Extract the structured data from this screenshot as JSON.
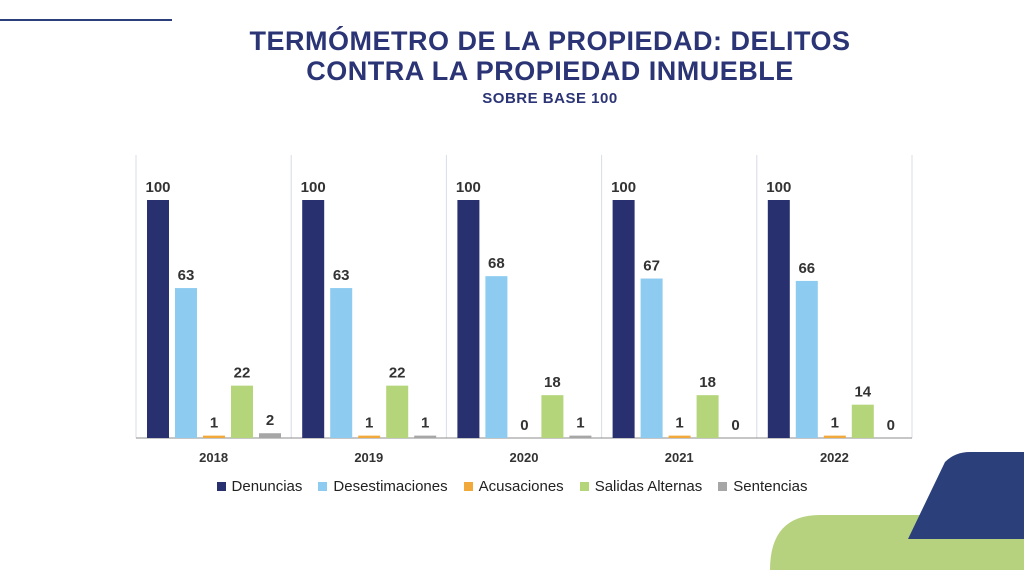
{
  "title_line1": "TERMÓMETRO DE LA PROPIEDAD: DELITOS",
  "title_line2": "CONTRA LA PROPIEDAD INMUEBLE",
  "subtitle": "SOBRE BASE 100",
  "colors": {
    "title": "#2b3576",
    "Denuncias": "#28306f",
    "Desestimaciones": "#8dcbf0",
    "Acusaciones": "#f2a93b",
    "Salidas Alternas": "#b5d57b",
    "Sentencias": "#a6a6a6",
    "deco_navy": "#2b3f7a",
    "deco_green": "#b6d27e"
  },
  "chart_data": {
    "type": "bar",
    "title": "TERMÓMETRO DE LA PROPIEDAD: DELITOS CONTRA LA PROPIEDAD INMUEBLE",
    "subtitle": "SOBRE BASE 100",
    "categories": [
      "2018",
      "2019",
      "2020",
      "2021",
      "2022"
    ],
    "series": [
      {
        "name": "Denuncias",
        "values": [
          100,
          100,
          100,
          100,
          100
        ]
      },
      {
        "name": "Desestimaciones",
        "values": [
          63,
          63,
          68,
          67,
          66
        ]
      },
      {
        "name": "Acusaciones",
        "values": [
          1,
          1,
          0,
          1,
          1
        ]
      },
      {
        "name": "Salidas Alternas",
        "values": [
          22,
          22,
          18,
          18,
          14
        ]
      },
      {
        "name": "Sentencias",
        "values": [
          2,
          1,
          1,
          0,
          0
        ]
      }
    ],
    "ylim": [
      0,
      100
    ],
    "legend_position": "bottom",
    "grid": false
  }
}
